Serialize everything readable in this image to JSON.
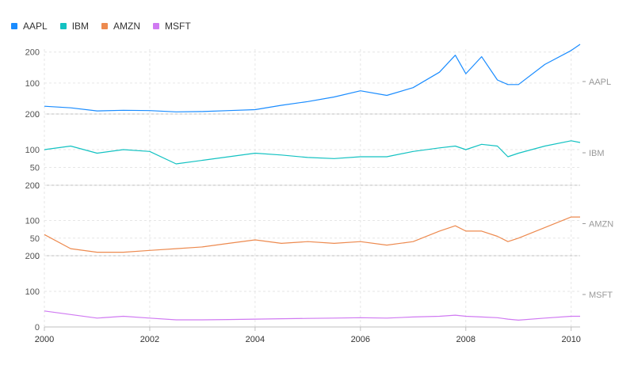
{
  "chart_data": {
    "type": "line",
    "layout": "small-multiples-stacked",
    "x": [
      2000.0,
      2000.5,
      2001.0,
      2001.5,
      2002.0,
      2002.5,
      2003.0,
      2003.5,
      2004.0,
      2004.5,
      2005.0,
      2005.5,
      2006.0,
      2006.5,
      2007.0,
      2007.5,
      2007.8,
      2008.0,
      2008.3,
      2008.6,
      2008.8,
      2009.0,
      2009.5,
      2010.0,
      2010.17
    ],
    "xlabel": "",
    "xticks": [
      "2000",
      "2002",
      "2004",
      "2006",
      "2008",
      "2010"
    ],
    "xlim": [
      2000,
      2010.17
    ],
    "series": [
      {
        "name": "AAPL",
        "color": "#1a8cff",
        "ylim": [
          0,
          230
        ],
        "yticks": [
          "0",
          "100",
          "200"
        ],
        "values": [
          25,
          20,
          10,
          12,
          11,
          7,
          8,
          11,
          14,
          28,
          40,
          55,
          75,
          60,
          85,
          135,
          190,
          130,
          185,
          110,
          95,
          95,
          160,
          205,
          225
        ]
      },
      {
        "name": "IBM",
        "color": "#13c2c2",
        "ylim": [
          0,
          200
        ],
        "yticks": [
          "0",
          "50",
          "100",
          "200"
        ],
        "values": [
          100,
          110,
          90,
          100,
          95,
          60,
          70,
          80,
          90,
          85,
          78,
          75,
          80,
          80,
          95,
          105,
          110,
          100,
          115,
          110,
          80,
          90,
          110,
          125,
          120
        ]
      },
      {
        "name": "AMZN",
        "color": "#ed8a4f",
        "ylim": [
          0,
          200
        ],
        "yticks": [
          "0",
          "50",
          "100",
          "200"
        ],
        "values": [
          60,
          20,
          10,
          10,
          15,
          20,
          25,
          35,
          45,
          35,
          40,
          35,
          40,
          30,
          40,
          70,
          85,
          70,
          70,
          55,
          40,
          50,
          80,
          110,
          110
        ]
      },
      {
        "name": "MSFT",
        "color": "#d07af2",
        "ylim": [
          0,
          200
        ],
        "yticks": [
          "0",
          "100",
          "200"
        ],
        "values": [
          45,
          35,
          25,
          30,
          25,
          20,
          20,
          21,
          22,
          23,
          24,
          25,
          26,
          25,
          28,
          30,
          33,
          30,
          28,
          26,
          22,
          19,
          25,
          30,
          30
        ]
      }
    ]
  }
}
